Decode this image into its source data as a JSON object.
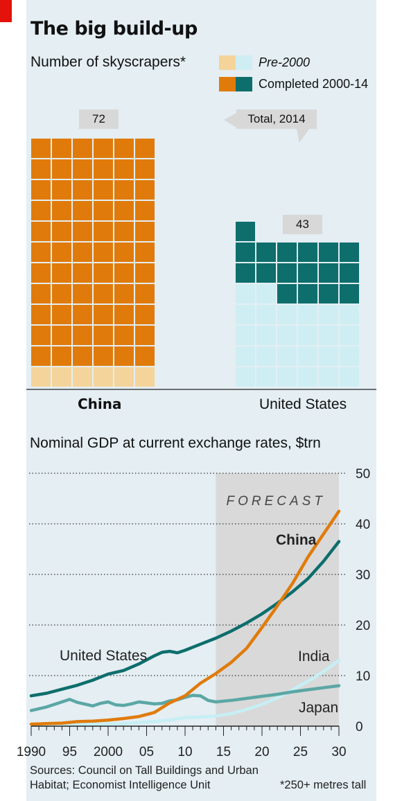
{
  "title": "The big build-up",
  "chart_data": [
    {
      "type": "bar",
      "title": "Number of skyscrapers*",
      "note": "Total, 2014",
      "categories": [
        "China",
        "United States"
      ],
      "series": [
        {
          "name": "Pre-2000",
          "values": [
            6,
            26
          ]
        },
        {
          "name": "Completed 2000-14",
          "values": [
            66,
            17
          ]
        }
      ],
      "totals": [
        72,
        43
      ],
      "colors": {
        "China": {
          "pre": "#f4d49b",
          "completed": "#e07b0b"
        },
        "United States": {
          "pre": "#cfeef4",
          "completed": "#0d6e6c"
        }
      }
    },
    {
      "type": "line",
      "title": "Nominal GDP at current exchange rates, $trn",
      "forecast_label": "FORECAST",
      "forecast_from": 2014,
      "xlim": [
        1990,
        2030
      ],
      "ylim": [
        0,
        50
      ],
      "xticks": [
        1990,
        1995,
        2000,
        2005,
        2010,
        2015,
        2020,
        2025,
        2030
      ],
      "xtick_labels": [
        "1990",
        "95",
        "2000",
        "05",
        "10",
        "15",
        "20",
        "25",
        "30"
      ],
      "yticks": [
        0,
        10,
        20,
        30,
        40,
        50
      ],
      "ytick_labels": [
        "0",
        "10",
        "20",
        "30",
        "40",
        "50"
      ],
      "series": [
        {
          "name": "United States",
          "color": "#0d6e6c",
          "bold": false,
          "x": [
            1990,
            1992,
            1994,
            1996,
            1998,
            2000,
            2002,
            2004,
            2006,
            2007,
            2008,
            2009,
            2010,
            2012,
            2014,
            2016,
            2018,
            2020,
            2022,
            2024,
            2026,
            2028,
            2030
          ],
          "y": [
            6.0,
            6.5,
            7.3,
            8.1,
            9.1,
            10.3,
            11.0,
            12.3,
            13.9,
            14.6,
            14.8,
            14.5,
            15.0,
            16.2,
            17.4,
            18.8,
            20.4,
            22.2,
            24.3,
            26.6,
            29.2,
            32.6,
            36.5
          ]
        },
        {
          "name": "China",
          "color": "#e07b0b",
          "bold": true,
          "x": [
            1990,
            1992,
            1994,
            1996,
            1998,
            2000,
            2002,
            2004,
            2006,
            2008,
            2010,
            2012,
            2014,
            2016,
            2018,
            2020,
            2022,
            2024,
            2026,
            2028,
            2030
          ],
          "y": [
            0.4,
            0.5,
            0.6,
            0.9,
            1.0,
            1.2,
            1.5,
            1.9,
            2.7,
            4.6,
            6.0,
            8.5,
            10.4,
            12.6,
            15.4,
            19.5,
            23.8,
            28.3,
            33.5,
            38.0,
            42.5
          ]
        },
        {
          "name": "Japan",
          "color": "#5ba7a5",
          "bold": false,
          "x": [
            1990,
            1992,
            1994,
            1995,
            1996,
            1998,
            1999,
            2000,
            2001,
            2002,
            2003,
            2004,
            2005,
            2006,
            2007,
            2008,
            2009,
            2010,
            2011,
            2012,
            2013,
            2014,
            2016,
            2018,
            2020,
            2022,
            2024,
            2026,
            2028,
            2030
          ],
          "y": [
            3.1,
            3.8,
            4.8,
            5.3,
            4.7,
            4.0,
            4.5,
            4.8,
            4.2,
            4.1,
            4.4,
            4.8,
            4.6,
            4.4,
            4.5,
            5.0,
            5.2,
            5.7,
            6.1,
            6.0,
            5.1,
            4.8,
            5.1,
            5.5,
            5.9,
            6.3,
            6.8,
            7.2,
            7.6,
            8.0
          ]
        },
        {
          "name": "India",
          "color": "#c6eff5",
          "bold": false,
          "x": [
            1990,
            1994,
            1998,
            2002,
            2004,
            2006,
            2008,
            2010,
            2012,
            2014,
            2016,
            2018,
            2020,
            2022,
            2024,
            2026,
            2028,
            2030
          ],
          "y": [
            0.3,
            0.3,
            0.4,
            0.5,
            0.7,
            0.9,
            1.2,
            1.7,
            1.8,
            2.0,
            2.5,
            3.3,
            4.3,
            5.6,
            7.2,
            8.9,
            10.8,
            13.0
          ]
        }
      ]
    }
  ],
  "source": "Sources: Council on Tall Buildings and Urban Habitat; Economist Intelligence Unit",
  "footnote": "*250+ metres tall"
}
